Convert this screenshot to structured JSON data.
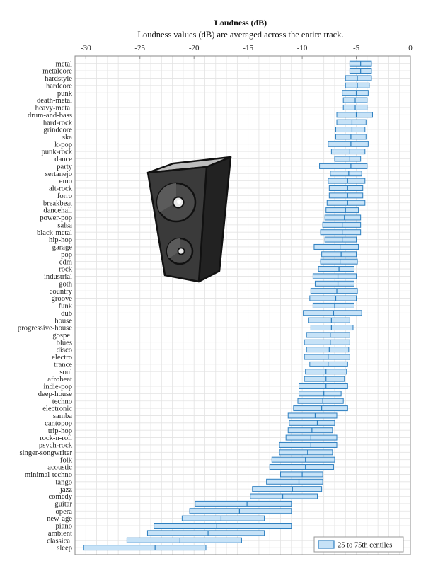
{
  "chart_data": {
    "type": "bar",
    "orientation": "horizontal-range",
    "title": "Loudness (dB)",
    "subtitle": "Loudness values (dB) are averaged across the entire track.",
    "xlim": [
      -31,
      0
    ],
    "xticks": [
      -30,
      -25,
      -20,
      -15,
      -10,
      -5,
      0
    ],
    "grid": true,
    "legend": {
      "label": "25 to 75th centiles",
      "position": "bottom-right"
    },
    "colors": {
      "box_fill": "#c6e2f7",
      "box_stroke": "#2d7fc0",
      "grid": "#e3e3e3",
      "axis": "#888888"
    },
    "categories": [
      "metal",
      "metalcore",
      "hardstyle",
      "hardcore",
      "punk",
      "death-metal",
      "heavy-metal",
      "drum-and-bass",
      "hard-rock",
      "grindcore",
      "ska",
      "k-pop",
      "punk-rock",
      "dance",
      "party",
      "sertanejo",
      "emo",
      "alt-rock",
      "forro",
      "breakbeat",
      "dancehall",
      "power-pop",
      "salsa",
      "black-metal",
      "hip-hop",
      "garage",
      "pop",
      "edm",
      "rock",
      "industrial",
      "goth",
      "country",
      "groove",
      "funk",
      "dub",
      "house",
      "progressive-house",
      "gospel",
      "blues",
      "disco",
      "electro",
      "trance",
      "soul",
      "afrobeat",
      "indie-pop",
      "deep-house",
      "techno",
      "electronic",
      "samba",
      "cantopop",
      "trip-hop",
      "rock-n-roll",
      "psych-rock",
      "singer-songwriter",
      "folk",
      "acoustic",
      "minimal-techno",
      "tango",
      "jazz",
      "comedy",
      "guitar",
      "opera",
      "new-age",
      "piano",
      "ambient",
      "classical",
      "sleep"
    ],
    "q1": [
      -5.6,
      -5.6,
      -6.0,
      -6.0,
      -6.3,
      -6.2,
      -6.2,
      -6.8,
      -6.8,
      -6.9,
      -6.9,
      -7.6,
      -7.3,
      -7.0,
      -8.4,
      -7.4,
      -7.6,
      -7.5,
      -7.5,
      -7.7,
      -7.8,
      -7.9,
      -8.1,
      -8.3,
      -7.9,
      -8.9,
      -8.2,
      -8.3,
      -8.5,
      -9.0,
      -8.8,
      -9.2,
      -9.3,
      -9.0,
      -9.9,
      -9.4,
      -9.2,
      -9.6,
      -9.8,
      -9.6,
      -9.8,
      -9.3,
      -9.7,
      -9.8,
      -10.3,
      -10.3,
      -10.4,
      -10.8,
      -11.3,
      -11.2,
      -11.3,
      -11.5,
      -12.1,
      -12.1,
      -12.8,
      -13.0,
      -12.0,
      -13.3,
      -14.6,
      -14.8,
      -19.9,
      -20.4,
      -21.1,
      -23.7,
      -24.3,
      -26.2,
      -30.2
    ],
    "median": [
      -4.6,
      -4.6,
      -4.9,
      -4.9,
      -5.0,
      -5.1,
      -5.1,
      -5.0,
      -5.4,
      -5.4,
      -5.5,
      -5.5,
      -5.6,
      -5.6,
      -5.5,
      -5.7,
      -5.8,
      -5.8,
      -5.8,
      -5.8,
      -6.0,
      -6.1,
      -6.3,
      -6.3,
      -6.3,
      -6.5,
      -6.4,
      -6.5,
      -6.6,
      -6.7,
      -6.7,
      -6.8,
      -6.9,
      -7.0,
      -7.1,
      -7.3,
      -7.3,
      -7.4,
      -7.4,
      -7.5,
      -7.6,
      -7.6,
      -7.8,
      -7.8,
      -7.8,
      -8.0,
      -8.1,
      -8.2,
      -8.8,
      -8.6,
      -9.1,
      -9.2,
      -9.2,
      -9.5,
      -9.7,
      -9.7,
      -10.0,
      -10.3,
      -10.9,
      -11.8,
      -15.1,
      -15.8,
      -17.5,
      -17.9,
      -18.7,
      -21.3,
      -23.6
    ],
    "q3": [
      -3.6,
      -3.6,
      -3.6,
      -3.8,
      -3.9,
      -4.0,
      -4.0,
      -3.5,
      -4.1,
      -4.2,
      -4.1,
      -3.9,
      -4.2,
      -4.6,
      -4.0,
      -4.5,
      -4.2,
      -4.4,
      -4.4,
      -4.2,
      -4.8,
      -4.6,
      -4.6,
      -4.6,
      -5.0,
      -4.8,
      -5.0,
      -4.9,
      -5.2,
      -5.0,
      -5.2,
      -4.9,
      -5.0,
      -5.2,
      -4.5,
      -5.6,
      -5.3,
      -5.6,
      -5.6,
      -5.7,
      -5.6,
      -5.8,
      -5.9,
      -6.1,
      -5.8,
      -6.4,
      -6.2,
      -5.8,
      -6.8,
      -7.0,
      -7.2,
      -6.8,
      -6.8,
      -7.2,
      -7.0,
      -7.1,
      -8.1,
      -8.1,
      -8.2,
      -8.6,
      -11.0,
      -11.0,
      -13.5,
      -11.0,
      -13.5,
      -15.6,
      -18.9
    ]
  }
}
